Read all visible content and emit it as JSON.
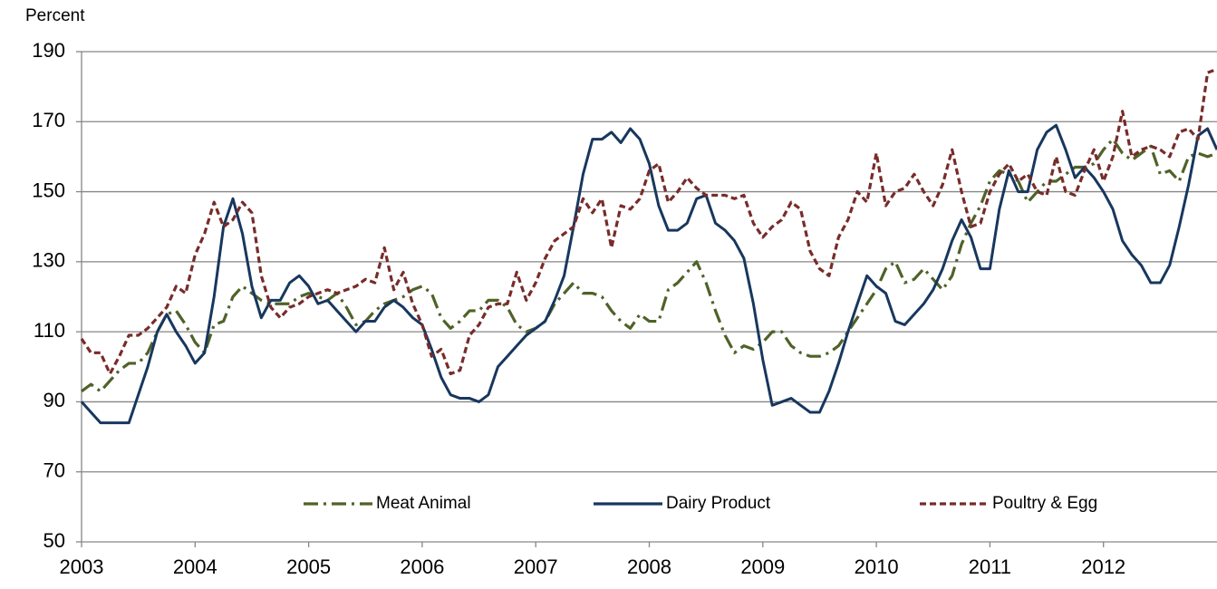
{
  "chart_data": {
    "type": "line",
    "y_label": "Percent",
    "x": [
      2003,
      2003.083,
      2003.167,
      2003.25,
      2003.333,
      2003.417,
      2003.5,
      2003.583,
      2003.667,
      2003.75,
      2003.833,
      2003.917,
      2004,
      2004.083,
      2004.167,
      2004.25,
      2004.333,
      2004.417,
      2004.5,
      2004.583,
      2004.667,
      2004.75,
      2004.833,
      2004.917,
      2005,
      2005.083,
      2005.167,
      2005.25,
      2005.333,
      2005.417,
      2005.5,
      2005.583,
      2005.667,
      2005.75,
      2005.833,
      2005.917,
      2006,
      2006.083,
      2006.167,
      2006.25,
      2006.333,
      2006.417,
      2006.5,
      2006.583,
      2006.667,
      2006.75,
      2006.833,
      2006.917,
      2007,
      2007.083,
      2007.167,
      2007.25,
      2007.333,
      2007.417,
      2007.5,
      2007.583,
      2007.667,
      2007.75,
      2007.833,
      2007.917,
      2008,
      2008.083,
      2008.167,
      2008.25,
      2008.333,
      2008.417,
      2008.5,
      2008.583,
      2008.667,
      2008.75,
      2008.833,
      2008.917,
      2009,
      2009.083,
      2009.167,
      2009.25,
      2009.333,
      2009.417,
      2009.5,
      2009.583,
      2009.667,
      2009.75,
      2009.833,
      2009.917,
      2010,
      2010.083,
      2010.167,
      2010.25,
      2010.333,
      2010.417,
      2010.5,
      2010.583,
      2010.667,
      2010.75,
      2010.833,
      2010.917,
      2011,
      2011.083,
      2011.167,
      2011.25,
      2011.333,
      2011.417,
      2011.5,
      2011.583,
      2011.667,
      2011.75,
      2011.833,
      2011.917,
      2012,
      2012.083,
      2012.167,
      2012.25,
      2012.333,
      2012.417,
      2012.5,
      2012.583,
      2012.667,
      2012.75,
      2012.833,
      2012.917,
      2013
    ],
    "series": [
      {
        "name": "Meat Animal",
        "color": "#4f6228",
        "style": "dash-dot",
        "values": [
          93,
          95,
          93,
          96,
          99,
          101,
          101,
          104,
          110,
          115,
          116,
          112,
          107,
          104,
          112,
          113,
          120,
          123,
          121,
          119,
          118,
          118,
          118,
          120,
          121,
          120,
          119,
          121,
          117,
          112,
          113,
          116,
          118,
          119,
          120,
          122,
          123,
          121,
          114,
          111,
          113,
          116,
          116,
          119,
          119,
          117,
          112,
          110,
          111,
          113,
          118,
          121,
          124,
          121,
          121,
          120,
          116,
          113,
          111,
          115,
          113,
          113,
          122,
          124,
          127,
          130,
          124,
          116,
          109,
          104,
          106,
          105,
          107,
          110,
          110,
          106,
          104,
          103,
          103,
          104,
          106,
          110,
          114,
          118,
          122,
          128,
          130,
          124,
          125,
          128,
          125,
          122,
          126,
          135,
          141,
          146,
          153,
          156,
          155,
          153,
          147,
          150,
          153,
          153,
          155,
          157,
          157,
          158,
          162,
          165,
          161,
          159,
          161,
          163,
          155,
          156,
          153,
          160,
          161,
          160,
          161
        ]
      },
      {
        "name": "Dairy Product",
        "color": "#17375e",
        "style": "solid",
        "values": [
          90,
          87,
          84,
          84,
          84,
          84,
          92,
          100,
          110,
          115,
          110,
          106,
          101,
          104,
          120,
          140,
          148,
          138,
          123,
          114,
          119,
          119,
          124,
          126,
          123,
          118,
          119,
          116,
          113,
          110,
          113,
          113,
          117,
          119,
          117,
          114,
          112,
          105,
          97,
          92,
          91,
          91,
          90,
          92,
          100,
          103,
          106,
          109,
          111,
          113,
          119,
          126,
          140,
          155,
          165,
          165,
          167,
          164,
          168,
          165,
          158,
          146,
          139,
          139,
          141,
          148,
          149,
          141,
          139,
          136,
          131,
          118,
          102,
          89,
          90,
          91,
          89,
          87,
          87,
          93,
          101,
          110,
          118,
          126,
          123,
          121,
          113,
          112,
          115,
          118,
          122,
          128,
          136,
          142,
          137,
          128,
          128,
          145,
          156,
          150,
          150,
          162,
          167,
          169,
          162,
          154,
          157,
          154,
          150,
          145,
          136,
          132,
          129,
          124,
          124,
          129,
          140,
          152,
          166,
          168,
          162
        ]
      },
      {
        "name": "Poultry & Egg",
        "color": "#772c2a",
        "style": "dash",
        "values": [
          108,
          104,
          104,
          98,
          103,
          109,
          109,
          111,
          114,
          117,
          123,
          121,
          132,
          138,
          147,
          140,
          142,
          147,
          144,
          126,
          117,
          114,
          117,
          118,
          120,
          121,
          122,
          121,
          122,
          123,
          125,
          124,
          134,
          122,
          127,
          118,
          112,
          103,
          105,
          98,
          99,
          109,
          112,
          117,
          118,
          118,
          127,
          119,
          124,
          131,
          136,
          138,
          140,
          148,
          144,
          148,
          134,
          146,
          145,
          148,
          156,
          158,
          147,
          150,
          154,
          151,
          149,
          149,
          149,
          148,
          149,
          141,
          137,
          140,
          142,
          147,
          145,
          133,
          128,
          126,
          137,
          142,
          150,
          147,
          161,
          146,
          150,
          151,
          155,
          150,
          146,
          152,
          162,
          150,
          140,
          141,
          150,
          155,
          158,
          153,
          155,
          150,
          149,
          160,
          150,
          149,
          156,
          162,
          153,
          160,
          173,
          160,
          162,
          163,
          162,
          160,
          167,
          168,
          165,
          184,
          185
        ]
      }
    ],
    "xlim": [
      2003,
      2013
    ],
    "xticks": [
      2003,
      2004,
      2005,
      2006,
      2007,
      2008,
      2009,
      2010,
      2011,
      2012
    ],
    "ylim": [
      50,
      190
    ],
    "yticks": [
      50,
      70,
      90,
      110,
      130,
      150,
      170,
      190
    ],
    "grid": true,
    "legend": "lower center"
  }
}
